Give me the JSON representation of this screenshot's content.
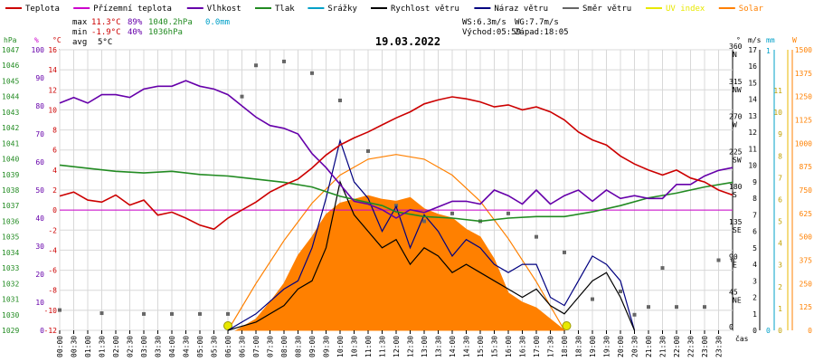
{
  "chart_data": {
    "type": "line",
    "title": "19.03.2022",
    "xlabel": "čas",
    "legend": [
      {
        "name": "Teplota",
        "color": "#cc0000"
      },
      {
        "name": "Přízemní teplota",
        "color": "#cc00cc"
      },
      {
        "name": "Vlhkost",
        "color": "#6600aa"
      },
      {
        "name": "Tlak",
        "color": "#228b22"
      },
      {
        "name": "Srážky",
        "color": "#00a0c8"
      },
      {
        "name": "Rychlost větru",
        "color": "#000000"
      },
      {
        "name": "Náraz větru",
        "color": "#000080"
      },
      {
        "name": "Směr větru",
        "color": "#666666"
      },
      {
        "name": "UV index",
        "color": "#e8e800"
      },
      {
        "name": "Solar",
        "color": "#ff8000"
      }
    ],
    "stats": {
      "max_label": "max",
      "max_temp": "11.3°C",
      "max_hum": "89%",
      "max_press": "1040.2hPa",
      "max_rain": "0.0mm",
      "min_label": "min",
      "min_temp": "-1.9°C",
      "min_hum": "40%",
      "min_press": "1036hPa",
      "avg_label": "avg",
      "avg_temp": "5°C",
      "ws": "WS:6.3m/s",
      "wg": "WG:7.7m/s",
      "sunrise": "Východ:05:59",
      "sunset": "Západ:18:05"
    },
    "axes": {
      "hpa_title": "hPa",
      "pct_title": "%",
      "temp_title": "°C",
      "dir_title": "°",
      "ms_title": "m/s",
      "mm_title": "mm",
      "w_title": "W",
      "hpa_ticks": [
        "1047",
        "1046",
        "1045",
        "1044",
        "1043",
        "1042",
        "1041",
        "1040",
        "1039",
        "1038",
        "1037",
        "1036",
        "1035",
        "1034",
        "1033",
        "1032",
        "1031",
        "1030",
        "1029"
      ],
      "pct_ticks": [
        "100",
        "90",
        "80",
        "70",
        "60",
        "50",
        "40",
        "30",
        "20",
        "10",
        "0"
      ],
      "temp_ticks": [
        "16",
        "14",
        "12",
        "10",
        "8",
        "6",
        "4",
        "2",
        "0",
        "-2",
        "-4",
        "-6",
        "-8",
        "-10",
        "-12"
      ],
      "dir_ticks": [
        [
          "360",
          "N"
        ],
        [
          "315",
          "NW"
        ],
        [
          "270",
          "W"
        ],
        [
          "225",
          "SW"
        ],
        [
          "180",
          "S"
        ],
        [
          "135",
          "SE"
        ],
        [
          "90",
          "E"
        ],
        [
          "45",
          "NE"
        ],
        [
          "0",
          ""
        ]
      ],
      "ms_ticks": [
        "17",
        "16",
        "15",
        "14",
        "13",
        "12",
        "11",
        "10",
        "9",
        "8",
        "7",
        "6",
        "5",
        "4",
        "3",
        "2",
        "1",
        "0"
      ],
      "mm_ticks": [
        "1",
        "0"
      ],
      "solar_ticks": [
        "1500",
        "1375",
        "1250",
        "1125",
        "1000",
        "875",
        "750",
        "625",
        "500",
        "375",
        "250",
        "125",
        "0"
      ],
      "uv_ticks": [
        "11",
        "10",
        "9",
        "8",
        "7",
        "6",
        "5",
        "4",
        "3",
        "2",
        "1",
        "0"
      ],
      "time_ticks": [
        "00:00",
        "00:30",
        "01:00",
        "01:30",
        "02:00",
        "02:30",
        "03:00",
        "03:30",
        "04:00",
        "04:30",
        "05:00",
        "05:30",
        "06:00",
        "06:30",
        "07:00",
        "07:30",
        "08:00",
        "08:30",
        "09:00",
        "09:30",
        "10:00",
        "10:30",
        "11:00",
        "11:30",
        "12:00",
        "12:30",
        "13:00",
        "13:30",
        "14:00",
        "14:30",
        "15:00",
        "15:30",
        "16:00",
        "16:30",
        "17:00",
        "17:30",
        "18:00",
        "18:30",
        "19:00",
        "19:30",
        "20:00",
        "20:30",
        "21:00",
        "21:30",
        "22:00",
        "22:30",
        "23:00",
        "23:30"
      ]
    },
    "x_range": [
      0,
      24
    ],
    "ylim_temp": [
      -12,
      16
    ],
    "ylim_humidity": [
      0,
      100
    ],
    "ylim_pressure": [
      1029,
      1047
    ],
    "ylim_wind": [
      0,
      17
    ],
    "ylim_direction": [
      0,
      360
    ],
    "ylim_solar": [
      0,
      1500
    ],
    "series": [
      {
        "name": "Teplota",
        "unit": "°C",
        "points": [
          [
            0,
            1.4
          ],
          [
            0.5,
            1.8
          ],
          [
            1,
            1.0
          ],
          [
            1.5,
            0.8
          ],
          [
            2,
            1.5
          ],
          [
            2.5,
            0.5
          ],
          [
            3,
            1.0
          ],
          [
            3.5,
            -0.5
          ],
          [
            4,
            -0.2
          ],
          [
            4.5,
            -0.8
          ],
          [
            5,
            -1.5
          ],
          [
            5.5,
            -1.9
          ],
          [
            6,
            -0.8
          ],
          [
            6.5,
            0.0
          ],
          [
            7,
            0.8
          ],
          [
            7.5,
            1.8
          ],
          [
            8,
            2.5
          ],
          [
            8.5,
            3.1
          ],
          [
            9,
            4.2
          ],
          [
            9.5,
            5.5
          ],
          [
            10,
            6.5
          ],
          [
            10.5,
            7.2
          ],
          [
            11,
            7.8
          ],
          [
            11.5,
            8.5
          ],
          [
            12,
            9.2
          ],
          [
            12.5,
            9.8
          ],
          [
            13,
            10.6
          ],
          [
            13.5,
            11.0
          ],
          [
            14,
            11.3
          ],
          [
            14.5,
            11.1
          ],
          [
            15,
            10.8
          ],
          [
            15.5,
            10.3
          ],
          [
            16,
            10.5
          ],
          [
            16.5,
            10.0
          ],
          [
            17,
            10.3
          ],
          [
            17.5,
            9.8
          ],
          [
            18,
            9.0
          ],
          [
            18.5,
            7.8
          ],
          [
            19,
            7.0
          ],
          [
            19.5,
            6.5
          ],
          [
            20,
            5.4
          ],
          [
            20.5,
            4.6
          ],
          [
            21,
            4.0
          ],
          [
            21.5,
            3.5
          ],
          [
            22,
            4.0
          ],
          [
            22.5,
            3.2
          ],
          [
            23,
            2.8
          ],
          [
            23.5,
            2.0
          ],
          [
            24,
            1.5
          ]
        ]
      },
      {
        "name": "Vlhkost",
        "unit": "%",
        "points": [
          [
            0,
            81
          ],
          [
            0.5,
            83
          ],
          [
            1,
            81
          ],
          [
            1.5,
            84
          ],
          [
            2,
            84
          ],
          [
            2.5,
            83
          ],
          [
            3,
            86
          ],
          [
            3.5,
            87
          ],
          [
            4,
            87
          ],
          [
            4.5,
            89
          ],
          [
            5,
            87
          ],
          [
            5.5,
            86
          ],
          [
            6,
            84
          ],
          [
            6.5,
            80
          ],
          [
            7,
            76
          ],
          [
            7.5,
            73
          ],
          [
            8,
            72
          ],
          [
            8.5,
            70
          ],
          [
            9,
            63
          ],
          [
            9.5,
            58
          ],
          [
            10,
            52
          ],
          [
            10.5,
            46
          ],
          [
            11,
            45
          ],
          [
            11.5,
            43
          ],
          [
            12,
            40
          ],
          [
            12.5,
            43
          ],
          [
            13,
            42
          ],
          [
            13.5,
            44
          ],
          [
            14,
            46
          ],
          [
            14.5,
            46
          ],
          [
            15,
            45
          ],
          [
            15.5,
            50
          ],
          [
            16,
            48
          ],
          [
            16.5,
            45
          ],
          [
            17,
            50
          ],
          [
            17.5,
            45
          ],
          [
            18,
            48
          ],
          [
            18.5,
            50
          ],
          [
            19,
            46
          ],
          [
            19.5,
            50
          ],
          [
            20,
            47
          ],
          [
            20.5,
            48
          ],
          [
            21,
            47
          ],
          [
            21.5,
            47
          ],
          [
            22,
            52
          ],
          [
            22.5,
            52
          ],
          [
            23,
            55
          ],
          [
            23.5,
            57
          ],
          [
            24,
            58
          ]
        ]
      },
      {
        "name": "Tlak",
        "unit": "hPa",
        "points": [
          [
            0,
            1039.6
          ],
          [
            1,
            1039.4
          ],
          [
            2,
            1039.2
          ],
          [
            3,
            1039.1
          ],
          [
            4,
            1039.2
          ],
          [
            5,
            1039.0
          ],
          [
            6,
            1038.9
          ],
          [
            7,
            1038.7
          ],
          [
            8,
            1038.5
          ],
          [
            9,
            1038.2
          ],
          [
            10,
            1037.6
          ],
          [
            11,
            1037.2
          ],
          [
            11.5,
            1037.0
          ],
          [
            12,
            1036.6
          ],
          [
            13,
            1036.3
          ],
          [
            14,
            1036.2
          ],
          [
            15,
            1036.0
          ],
          [
            16,
            1036.2
          ],
          [
            17,
            1036.3
          ],
          [
            18,
            1036.3
          ],
          [
            19,
            1036.6
          ],
          [
            20,
            1037.0
          ],
          [
            21,
            1037.5
          ],
          [
            22,
            1037.8
          ],
          [
            23,
            1038.2
          ],
          [
            24,
            1038.5
          ]
        ]
      },
      {
        "name": "Přízemní teplota",
        "unit": "°C",
        "points": [
          [
            0,
            0.0
          ],
          [
            24,
            0.0
          ]
        ]
      },
      {
        "name": "Rychlost větru",
        "unit": "m/s",
        "points": [
          [
            6,
            0
          ],
          [
            7,
            0.5
          ],
          [
            8,
            1.5
          ],
          [
            8.5,
            2.5
          ],
          [
            9,
            3
          ],
          [
            9.5,
            5
          ],
          [
            10,
            9
          ],
          [
            10.5,
            7
          ],
          [
            11,
            6
          ],
          [
            11.5,
            5
          ],
          [
            12,
            5.5
          ],
          [
            12.5,
            4
          ],
          [
            13,
            5
          ],
          [
            13.5,
            4.5
          ],
          [
            14,
            3.5
          ],
          [
            14.5,
            4
          ],
          [
            15,
            3.5
          ],
          [
            15.5,
            3
          ],
          [
            16,
            2.5
          ],
          [
            16.5,
            2
          ],
          [
            17,
            2.5
          ],
          [
            17.5,
            1.5
          ],
          [
            18,
            1
          ],
          [
            18.5,
            2
          ],
          [
            19,
            3
          ],
          [
            19.5,
            3.5
          ],
          [
            20,
            2
          ],
          [
            20.5,
            0
          ]
        ]
      },
      {
        "name": "Náraz větru",
        "unit": "m/s",
        "points": [
          [
            6,
            0
          ],
          [
            7,
            1
          ],
          [
            8,
            2.5
          ],
          [
            8.5,
            3
          ],
          [
            9,
            5
          ],
          [
            9.5,
            8
          ],
          [
            10,
            11.5
          ],
          [
            10.5,
            9
          ],
          [
            11,
            8
          ],
          [
            11.5,
            6
          ],
          [
            12,
            7.5
          ],
          [
            12.5,
            5
          ],
          [
            13,
            7
          ],
          [
            13.5,
            6
          ],
          [
            14,
            4.5
          ],
          [
            14.5,
            5.5
          ],
          [
            15,
            5
          ],
          [
            15.5,
            4
          ],
          [
            16,
            3.5
          ],
          [
            16.5,
            4
          ],
          [
            17,
            4
          ],
          [
            17.5,
            2
          ],
          [
            18,
            1.5
          ],
          [
            18.5,
            3
          ],
          [
            19,
            4.5
          ],
          [
            19.5,
            4
          ],
          [
            20,
            3
          ],
          [
            20.5,
            0
          ]
        ]
      },
      {
        "name": "Směr větru",
        "unit": "°",
        "points": [
          [
            0,
            26
          ],
          [
            1.5,
            22
          ],
          [
            3,
            21
          ],
          [
            4,
            21
          ],
          [
            5,
            21
          ],
          [
            6,
            21
          ],
          [
            6.5,
            300
          ],
          [
            7,
            340
          ],
          [
            8,
            345
          ],
          [
            9,
            330
          ],
          [
            10,
            295
          ],
          [
            11,
            230
          ],
          [
            12,
            160
          ],
          [
            13,
            140
          ],
          [
            14,
            150
          ],
          [
            15,
            140
          ],
          [
            16,
            150
          ],
          [
            17,
            120
          ],
          [
            18,
            100
          ],
          [
            19,
            40
          ],
          [
            20,
            50
          ],
          [
            20.5,
            20
          ],
          [
            21,
            30
          ],
          [
            21.5,
            80
          ],
          [
            22,
            30
          ],
          [
            23,
            30
          ],
          [
            23.5,
            90
          ],
          [
            24,
            90
          ]
        ]
      },
      {
        "name": "Solar",
        "unit": "W/m²",
        "points": [
          [
            6.3,
            0
          ],
          [
            7,
            60
          ],
          [
            7.5,
            150
          ],
          [
            8,
            250
          ],
          [
            8.5,
            400
          ],
          [
            9,
            500
          ],
          [
            9.5,
            620
          ],
          [
            10,
            680
          ],
          [
            10.5,
            700
          ],
          [
            11,
            720
          ],
          [
            11.5,
            700
          ],
          [
            12,
            690
          ],
          [
            12.5,
            710
          ],
          [
            13,
            650
          ],
          [
            13.5,
            620
          ],
          [
            14,
            600
          ],
          [
            14.5,
            540
          ],
          [
            15,
            500
          ],
          [
            15.5,
            380
          ],
          [
            16,
            200
          ],
          [
            16.5,
            150
          ],
          [
            17,
            120
          ],
          [
            17.5,
            60
          ],
          [
            18,
            0
          ]
        ]
      },
      {
        "name": "Solar max",
        "unit": "W/m²",
        "points": [
          [
            6,
            0
          ],
          [
            7,
            250
          ],
          [
            8,
            480
          ],
          [
            9,
            680
          ],
          [
            10,
            830
          ],
          [
            11,
            915
          ],
          [
            12,
            940
          ],
          [
            13,
            915
          ],
          [
            14,
            830
          ],
          [
            15,
            690
          ],
          [
            16,
            490
          ],
          [
            17,
            260
          ],
          [
            18,
            0
          ]
        ]
      }
    ]
  }
}
